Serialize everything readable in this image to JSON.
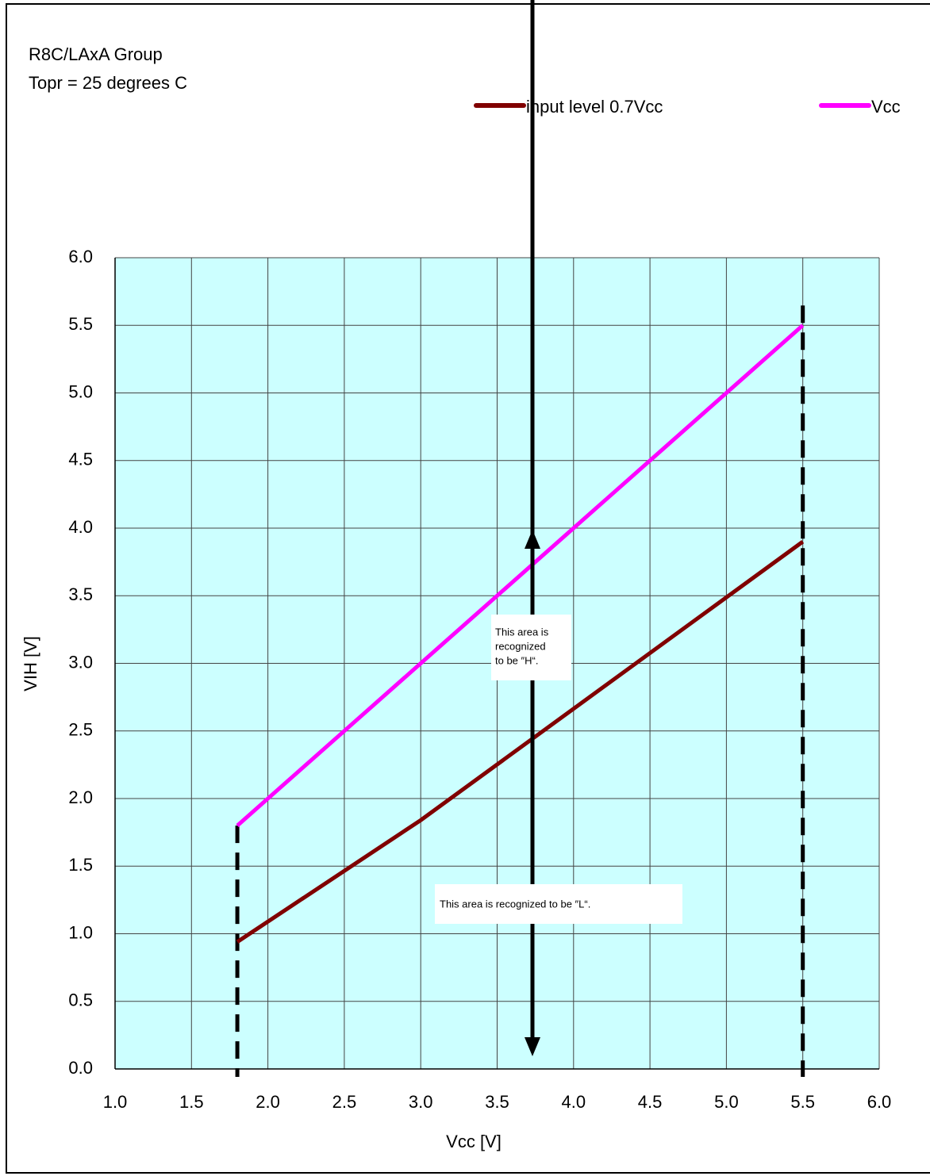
{
  "chart_data": {
    "type": "line",
    "header": [
      "R8C/LAxA  Group",
      "Topr = 25 degrees C"
    ],
    "x_label": "Vcc [V]",
    "y_label": "VIH [V]",
    "x": [
      1.8,
      3.0,
      5.5
    ],
    "series": [
      {
        "name": "input level 0.7Vcc",
        "color": "#800000",
        "values": [
          0.94,
          1.84,
          3.9
        ]
      },
      {
        "name": "Vcc",
        "color": "#ff00ff",
        "values": [
          1.8,
          3.0,
          5.5
        ]
      }
    ],
    "xlim": [
      1,
      6
    ],
    "xticks": [
      {
        "value": 1,
        "label": "1.0"
      },
      1.5,
      {
        "value": 2,
        "label": "2.0"
      },
      2.5,
      {
        "value": 3,
        "label": "3.0"
      },
      3.5,
      {
        "value": 4,
        "label": "4.0"
      },
      4.5,
      {
        "value": 5,
        "label": "5.0"
      },
      5.5,
      {
        "value": 6,
        "label": "6.0"
      }
    ],
    "ylim": [
      0,
      6
    ],
    "yticks": [
      {
        "value": 0,
        "label": "0.0"
      },
      0.5,
      {
        "value": 1,
        "label": "1.0"
      },
      1.5,
      {
        "value": 2,
        "label": "2.0"
      },
      2.5,
      {
        "value": 3,
        "label": "3.0"
      },
      3.5,
      {
        "value": 4,
        "label": "4.0"
      },
      4.5,
      {
        "value": 5,
        "label": "5.0"
      },
      5.5,
      {
        "value": 6,
        "label": "6.0"
      }
    ],
    "grid": true,
    "legend": "top-right",
    "annotations": [
      {
        "lines": [
          "This area is",
          "recognized",
          "to be ″H“."
        ]
      },
      {
        "lines": [
          "This area is recognized to be ″L“."
        ]
      }
    ]
  }
}
